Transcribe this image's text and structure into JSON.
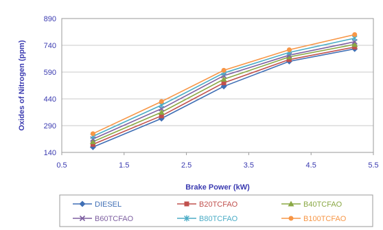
{
  "chart_data": {
    "type": "line",
    "xlabel": "Brake Power (kW)",
    "ylabel": "Oxides of Nitrogen (ppm)",
    "xlim": [
      0.5,
      5.5
    ],
    "ylim": [
      140,
      890
    ],
    "xticks": [
      "0.5",
      "1.5",
      "2.5",
      "3.5",
      "4.5",
      "5.5"
    ],
    "yticks": [
      "140",
      "290",
      "440",
      "590",
      "740",
      "890"
    ],
    "grid": "horizontal",
    "legend_position": "bottom",
    "x": [
      1.0,
      2.1,
      3.1,
      4.15,
      5.2
    ],
    "series": [
      {
        "name": "DIESEL",
        "color": "#3f6fb5",
        "marker": "diamond",
        "values": [
          170,
          330,
          510,
          650,
          720
        ]
      },
      {
        "name": "B20TCFAO",
        "color": "#c0504d",
        "marker": "square",
        "values": [
          185,
          345,
          530,
          660,
          730
        ]
      },
      {
        "name": "B40TCFAO",
        "color": "#8aa844",
        "marker": "triangle",
        "values": [
          200,
          365,
          550,
          675,
          745
        ]
      },
      {
        "name": "B60TCFAO",
        "color": "#7d5fa0",
        "marker": "x",
        "values": [
          215,
          385,
          570,
          685,
          760
        ]
      },
      {
        "name": "B80TCFAO",
        "color": "#4bacc6",
        "marker": "star",
        "values": [
          230,
          405,
          585,
          700,
          780
        ]
      },
      {
        "name": "B100TCFAO",
        "color": "#f79646",
        "marker": "circle",
        "values": [
          245,
          425,
          600,
          715,
          800
        ]
      }
    ]
  }
}
